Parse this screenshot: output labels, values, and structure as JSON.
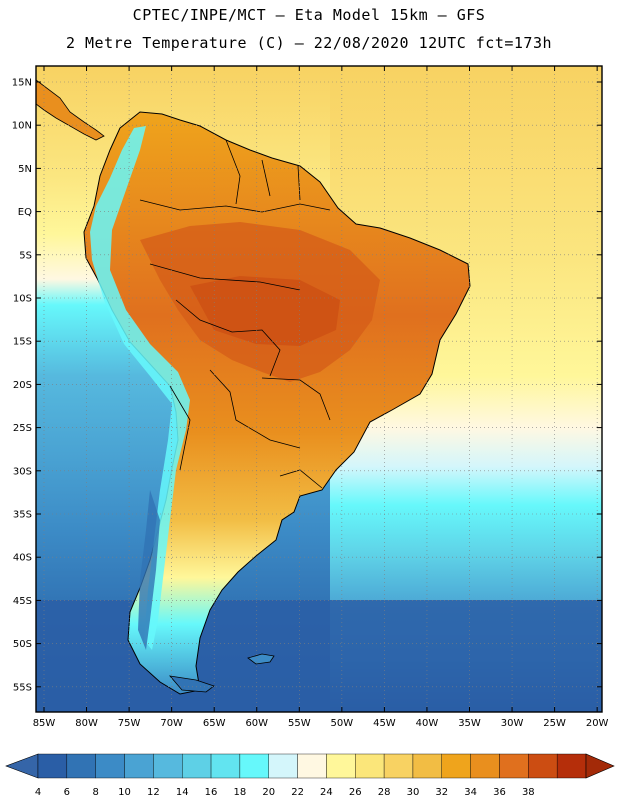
{
  "header": {
    "line1": "CPTEC/INPE/MCT –   Eta Model 15km – GFS",
    "line2": "2 Metre Temperature (C) – 22/08/2020 12UTC fct=173h"
  },
  "axes": {
    "lat_labels": [
      "15N",
      "10N",
      "5N",
      "EQ",
      "5S",
      "10S",
      "15S",
      "20S",
      "25S",
      "30S",
      "35S",
      "40S",
      "45S",
      "50S",
      "55S"
    ],
    "lon_labels": [
      "85W",
      "80W",
      "75W",
      "70W",
      "65W",
      "60W",
      "55W",
      "50W",
      "45W",
      "40W",
      "35W",
      "30W",
      "25W",
      "20W"
    ]
  },
  "colorbar": {
    "ticks": [
      "4",
      "6",
      "8",
      "10",
      "12",
      "14",
      "16",
      "18",
      "20",
      "22",
      "24",
      "26",
      "28",
      "30",
      "32",
      "34",
      "36",
      "38"
    ],
    "colors": [
      "#2a5ea6",
      "#3173b4",
      "#3c8bc6",
      "#4aa3d3",
      "#56b9de",
      "#5ed0e6",
      "#62e4f0",
      "#66f8fb",
      "#d4f6fb",
      "#fff8e2",
      "#fff79a",
      "#fbe67a",
      "#f8d262",
      "#f2bd44",
      "#efa41c",
      "#e98f1e",
      "#e0701e",
      "#cc4d12",
      "#b52e0a"
    ],
    "under_color": "#3565a8",
    "over_color": "#a32a08"
  },
  "map": {
    "ocean_north_color": "#fbe680",
    "land_warm_color": "#e98f1e",
    "land_hot_color": "#d45c18",
    "andes_color": "#66f8fb"
  }
}
